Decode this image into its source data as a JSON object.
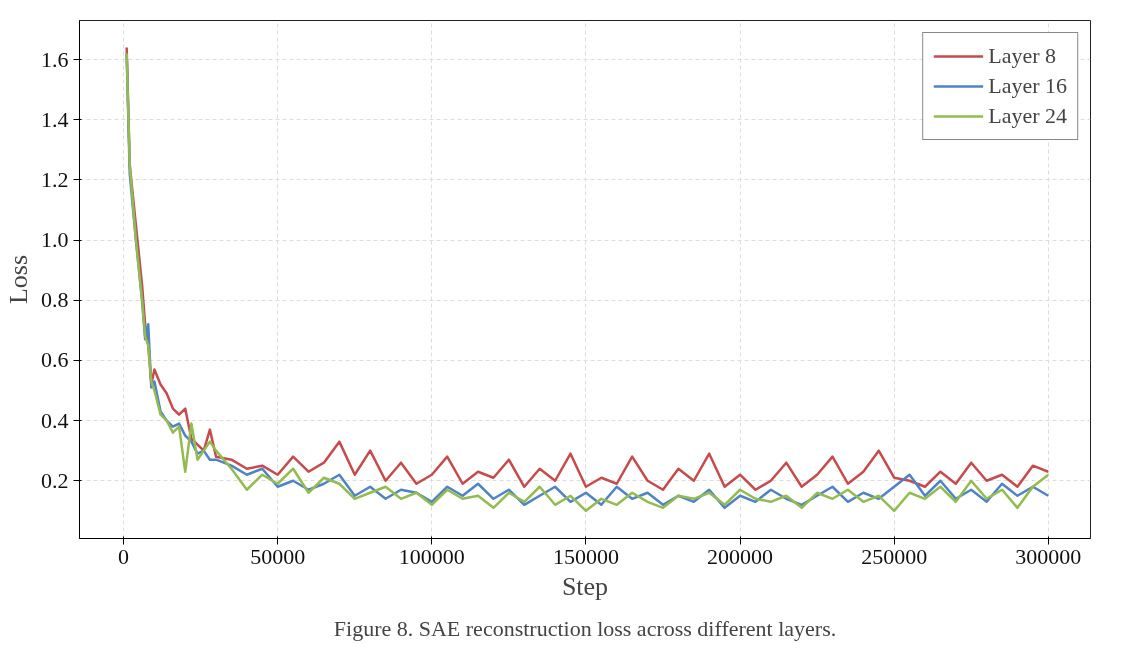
{
  "chart_data": {
    "type": "line",
    "xlabel": "Step",
    "ylabel": "Loss",
    "annotations": [
      "Figure 8. SAE reconstruction loss across different layers."
    ],
    "x": [
      1000,
      2000,
      4000,
      6000,
      7000,
      8000,
      9000,
      10000,
      12000,
      14000,
      16000,
      18000,
      20000,
      22000,
      24000,
      26000,
      28000,
      30000,
      35000,
      40000,
      45000,
      50000,
      55000,
      60000,
      65000,
      70000,
      75000,
      80000,
      85000,
      90000,
      95000,
      100000,
      105000,
      110000,
      115000,
      120000,
      125000,
      130000,
      135000,
      140000,
      145000,
      150000,
      155000,
      160000,
      165000,
      170000,
      175000,
      180000,
      185000,
      190000,
      195000,
      200000,
      205000,
      210000,
      215000,
      220000,
      225000,
      230000,
      235000,
      240000,
      245000,
      250000,
      255000,
      260000,
      265000,
      270000,
      275000,
      280000,
      285000,
      290000,
      295000,
      300000
    ],
    "series": [
      {
        "name": "Layer 8",
        "color": "#c84a4a",
        "values": [
          1.64,
          1.25,
          1.05,
          0.85,
          0.72,
          0.65,
          0.52,
          0.57,
          0.52,
          0.49,
          0.44,
          0.42,
          0.44,
          0.34,
          0.32,
          0.3,
          0.37,
          0.28,
          0.27,
          0.24,
          0.25,
          0.22,
          0.28,
          0.23,
          0.26,
          0.33,
          0.22,
          0.3,
          0.2,
          0.26,
          0.19,
          0.22,
          0.28,
          0.19,
          0.23,
          0.21,
          0.27,
          0.18,
          0.24,
          0.2,
          0.29,
          0.18,
          0.21,
          0.19,
          0.28,
          0.2,
          0.17,
          0.24,
          0.2,
          0.29,
          0.18,
          0.22,
          0.17,
          0.2,
          0.26,
          0.18,
          0.22,
          0.28,
          0.19,
          0.23,
          0.3,
          0.21,
          0.2,
          0.18,
          0.23,
          0.19,
          0.26,
          0.2,
          0.22,
          0.18,
          0.25,
          0.23
        ]
      },
      {
        "name": "Layer 16",
        "color": "#4f83c8",
        "values": [
          1.62,
          1.22,
          1.0,
          0.8,
          0.67,
          0.72,
          0.51,
          0.53,
          0.43,
          0.4,
          0.38,
          0.39,
          0.35,
          0.33,
          0.29,
          0.3,
          0.27,
          0.27,
          0.25,
          0.22,
          0.24,
          0.18,
          0.2,
          0.17,
          0.19,
          0.22,
          0.15,
          0.18,
          0.14,
          0.17,
          0.16,
          0.13,
          0.18,
          0.15,
          0.19,
          0.14,
          0.17,
          0.12,
          0.15,
          0.18,
          0.13,
          0.16,
          0.12,
          0.18,
          0.14,
          0.16,
          0.12,
          0.15,
          0.13,
          0.17,
          0.11,
          0.15,
          0.13,
          0.17,
          0.14,
          0.12,
          0.15,
          0.18,
          0.13,
          0.16,
          0.14,
          0.18,
          0.22,
          0.15,
          0.2,
          0.14,
          0.17,
          0.13,
          0.19,
          0.15,
          0.18,
          0.15
        ]
      },
      {
        "name": "Layer 24",
        "color": "#93bc4e",
        "values": [
          1.62,
          1.25,
          1.0,
          0.8,
          0.68,
          0.65,
          0.53,
          0.5,
          0.42,
          0.4,
          0.36,
          0.38,
          0.23,
          0.39,
          0.27,
          0.3,
          0.33,
          0.3,
          0.24,
          0.17,
          0.22,
          0.19,
          0.24,
          0.16,
          0.21,
          0.19,
          0.14,
          0.16,
          0.18,
          0.14,
          0.16,
          0.12,
          0.17,
          0.14,
          0.15,
          0.11,
          0.16,
          0.13,
          0.18,
          0.12,
          0.15,
          0.1,
          0.14,
          0.12,
          0.16,
          0.13,
          0.11,
          0.15,
          0.14,
          0.16,
          0.12,
          0.17,
          0.14,
          0.13,
          0.15,
          0.11,
          0.16,
          0.14,
          0.17,
          0.13,
          0.15,
          0.1,
          0.16,
          0.14,
          0.18,
          0.13,
          0.2,
          0.14,
          0.17,
          0.11,
          0.18,
          0.22
        ]
      }
    ],
    "xlim": [
      -14300,
      313700
    ],
    "ylim": [
      0.008,
      1.73
    ],
    "xticks": [
      0,
      50000,
      100000,
      150000,
      200000,
      250000,
      300000
    ],
    "yticks": [
      {
        "value": 0.2,
        "label": "0.2"
      },
      {
        "value": 0.4,
        "label": "0.4"
      },
      {
        "value": 0.6,
        "label": "0.6"
      },
      {
        "value": 0.8,
        "label": "0.8"
      },
      {
        "value": 1.0,
        "label": "1.0"
      },
      {
        "value": 1.2,
        "label": "1.2"
      },
      {
        "value": 1.4,
        "label": "1.4"
      },
      {
        "value": 1.6,
        "label": "1.6"
      }
    ],
    "grid": true,
    "legend": "top right",
    "line_style": "solid"
  }
}
